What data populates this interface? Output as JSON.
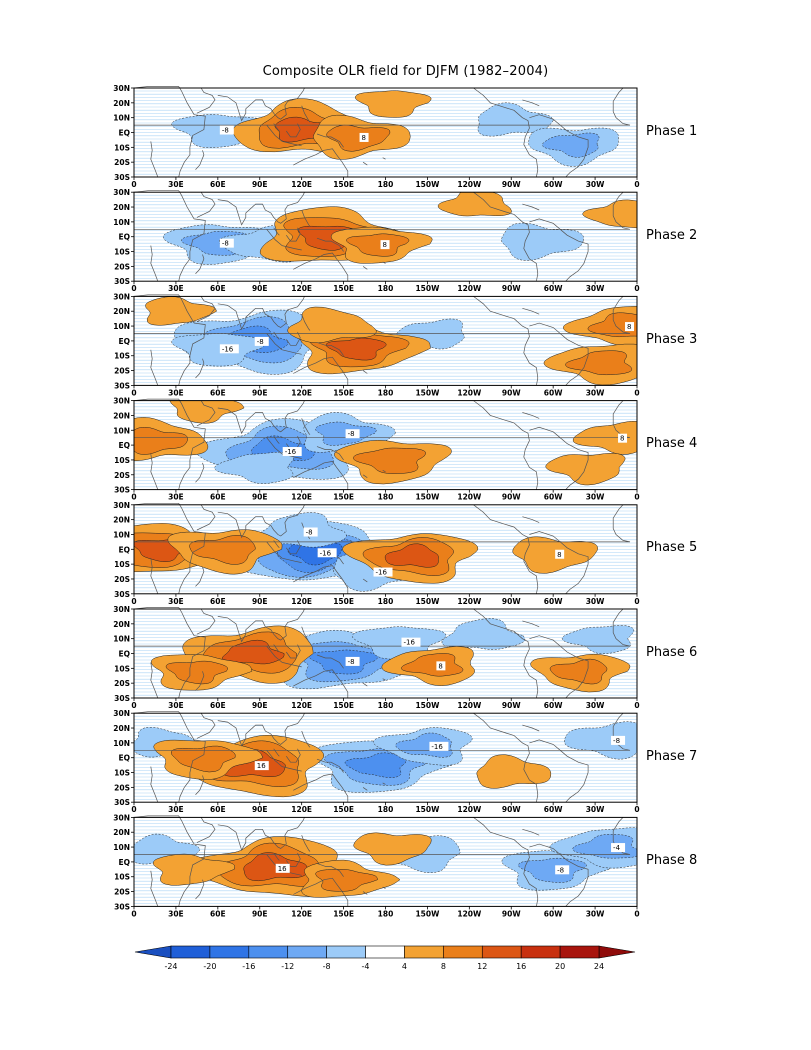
{
  "figure": {
    "title": "Composite OLR field for DJFM (1982–2004)"
  },
  "lat_labels": [
    "30N",
    "20N",
    "10N",
    "EQ",
    "10S",
    "20S",
    "30S"
  ],
  "lon_labels": [
    "0",
    "30E",
    "60E",
    "90E",
    "120E",
    "150E",
    "180",
    "150W",
    "120W",
    "90W",
    "60W",
    "30W",
    "0"
  ],
  "panels": [
    {
      "label": "Phase 1",
      "contour_labels": [
        "-8",
        "8"
      ],
      "pos": [
        {
          "lon": 120,
          "lat": 2,
          "amp": 13
        },
        {
          "lon": 160,
          "lat": -3,
          "amp": 9
        },
        {
          "lon": 185,
          "lat": 20,
          "amp": 5
        }
      ],
      "neg": [
        {
          "lon": 60,
          "lat": 2,
          "amp": 7
        },
        {
          "lon": 270,
          "lat": 8,
          "amp": 6
        },
        {
          "lon": 315,
          "lat": -8,
          "amp": 8
        }
      ]
    },
    {
      "label": "Phase 2",
      "contour_labels": [
        "-8",
        "8"
      ],
      "pos": [
        {
          "lon": 140,
          "lat": 0,
          "amp": 14
        },
        {
          "lon": 175,
          "lat": -5,
          "amp": 8
        },
        {
          "lon": 245,
          "lat": 22,
          "amp": 5
        },
        {
          "lon": 350,
          "lat": 15,
          "amp": 5
        }
      ],
      "neg": [
        {
          "lon": 60,
          "lat": -4,
          "amp": 9
        },
        {
          "lon": 95,
          "lat": -5,
          "amp": 7
        },
        {
          "lon": 290,
          "lat": -3,
          "amp": 7
        }
      ]
    },
    {
      "label": "Phase 3",
      "contour_labels": [
        "-8",
        "-16",
        "8"
      ],
      "pos": [
        {
          "lon": 160,
          "lat": -5,
          "amp": 12
        },
        {
          "lon": 140,
          "lat": 10,
          "amp": 7
        },
        {
          "lon": 350,
          "lat": 10,
          "amp": 9
        },
        {
          "lon": 335,
          "lat": -15,
          "amp": 9
        },
        {
          "lon": 30,
          "lat": 20,
          "amp": 5
        }
      ],
      "neg": [
        {
          "lon": 85,
          "lat": 0,
          "amp": 15
        },
        {
          "lon": 60,
          "lat": -5,
          "amp": 7
        },
        {
          "lon": 215,
          "lat": 5,
          "amp": 5
        }
      ]
    },
    {
      "label": "Phase 4",
      "contour_labels": [
        "-16",
        "-8",
        "8"
      ],
      "pos": [
        {
          "lon": 185,
          "lat": -10,
          "amp": 10
        },
        {
          "lon": 15,
          "lat": 3,
          "amp": 9
        },
        {
          "lon": 345,
          "lat": 5,
          "amp": 6
        },
        {
          "lon": 325,
          "lat": -15,
          "amp": 6
        },
        {
          "lon": 50,
          "lat": 25,
          "amp": 5
        }
      ],
      "neg": [
        {
          "lon": 105,
          "lat": -4,
          "amp": 15
        },
        {
          "lon": 150,
          "lat": 8,
          "amp": 8
        },
        {
          "lon": 90,
          "lat": -15,
          "amp": 6
        }
      ]
    },
    {
      "label": "Phase 5",
      "contour_labels": [
        "-16",
        "-8",
        "-16",
        "8"
      ],
      "pos": [
        {
          "lon": 20,
          "lat": 0,
          "amp": 12
        },
        {
          "lon": 65,
          "lat": 0,
          "amp": 10
        },
        {
          "lon": 200,
          "lat": -5,
          "amp": 12
        },
        {
          "lon": 300,
          "lat": -3,
          "amp": 7
        }
      ],
      "neg": [
        {
          "lon": 130,
          "lat": -2,
          "amp": 16
        },
        {
          "lon": 120,
          "lat": 12,
          "amp": 7
        },
        {
          "lon": 170,
          "lat": -15,
          "amp": 7
        }
      ]
    },
    {
      "label": "Phase 6",
      "contour_labels": [
        "-8",
        "-16",
        "8"
      ],
      "pos": [
        {
          "lon": 85,
          "lat": 0,
          "amp": 13
        },
        {
          "lon": 45,
          "lat": -12,
          "amp": 8
        },
        {
          "lon": 215,
          "lat": -8,
          "amp": 8
        },
        {
          "lon": 320,
          "lat": -12,
          "amp": 8
        }
      ],
      "neg": [
        {
          "lon": 150,
          "lat": -5,
          "amp": 14
        },
        {
          "lon": 190,
          "lat": 8,
          "amp": 7
        },
        {
          "lon": 250,
          "lat": 12,
          "amp": 6
        },
        {
          "lon": 335,
          "lat": 10,
          "amp": 5
        }
      ]
    },
    {
      "label": "Phase 7",
      "contour_labels": [
        "16",
        "-16",
        "-8"
      ],
      "pos": [
        {
          "lon": 85,
          "lat": -5,
          "amp": 15
        },
        {
          "lon": 50,
          "lat": 0,
          "amp": 9
        },
        {
          "lon": 270,
          "lat": -10,
          "amp": 6
        }
      ],
      "neg": [
        {
          "lon": 175,
          "lat": -5,
          "amp": 13
        },
        {
          "lon": 210,
          "lat": 8,
          "amp": 8
        },
        {
          "lon": 340,
          "lat": 12,
          "amp": 7
        },
        {
          "lon": 20,
          "lat": 10,
          "amp": 5
        }
      ]
    },
    {
      "label": "Phase 8",
      "contour_labels": [
        "16",
        "-8",
        "-4"
      ],
      "pos": [
        {
          "lon": 100,
          "lat": -4,
          "amp": 15
        },
        {
          "lon": 150,
          "lat": -12,
          "amp": 8
        },
        {
          "lon": 185,
          "lat": 10,
          "amp": 6
        },
        {
          "lon": 40,
          "lat": -5,
          "amp": 6
        }
      ],
      "neg": [
        {
          "lon": 205,
          "lat": 6,
          "amp": 7
        },
        {
          "lon": 300,
          "lat": -5,
          "amp": 9
        },
        {
          "lon": 340,
          "lat": 10,
          "amp": 9
        },
        {
          "lon": 20,
          "lat": 8,
          "amp": 5
        }
      ]
    }
  ],
  "colorbar": {
    "ticks": [
      "-24",
      "-20",
      "-16",
      "-12",
      "-8",
      "-4",
      "4",
      "8",
      "12",
      "16",
      "20",
      "24"
    ],
    "colors": [
      "#1f5fd8",
      "#2f74e6",
      "#4d90ef",
      "#6ea9f4",
      "#9ccbf8",
      "#ffffff",
      "#f3a233",
      "#ea7f1a",
      "#dc5614",
      "#c8300f",
      "#a8140d"
    ],
    "low_extend_color": "#1a4fc0",
    "high_extend_color": "#8f0b0a"
  },
  "field_colors": {
    "pos": [
      "#f3a233",
      "#ea7f1a",
      "#dc5614",
      "#c8300f",
      "#a8140d"
    ],
    "neg": [
      "#9ccbf8",
      "#6ea9f4",
      "#4d90ef",
      "#2f74e6"
    ],
    "stripe": "#a9d3f5",
    "coast": "#555555"
  }
}
